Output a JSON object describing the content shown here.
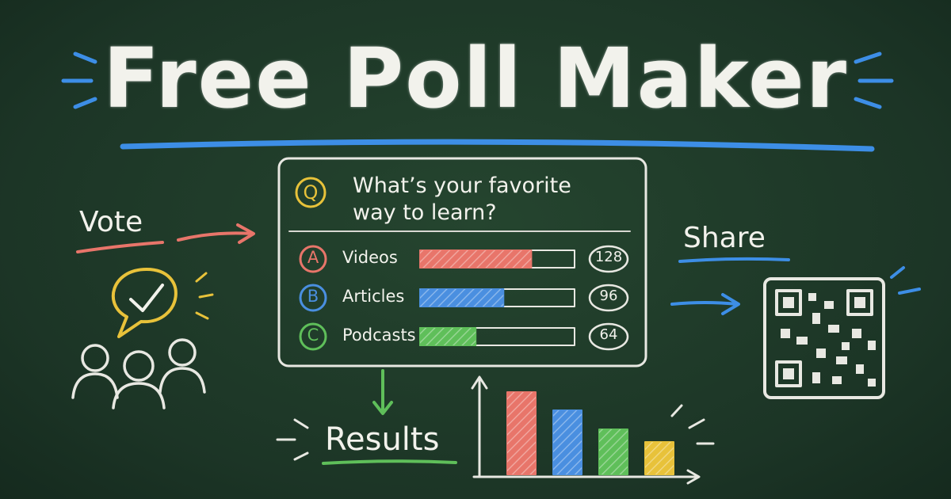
{
  "title": "Free Poll Maker",
  "poll": {
    "question_marker": "Q",
    "question": "What’s your favorite way to learn?",
    "options": [
      {
        "letter": "A",
        "label": "Videos",
        "votes": 128,
        "color": "#e8756a"
      },
      {
        "letter": "B",
        "label": "Articles",
        "votes": 96,
        "color": "#4a8fe0"
      },
      {
        "letter": "C",
        "label": "Podcasts",
        "votes": 64,
        "color": "#5fbf5a"
      }
    ]
  },
  "labels": {
    "vote": "Vote",
    "share": "Share",
    "results": "Results"
  }
}
